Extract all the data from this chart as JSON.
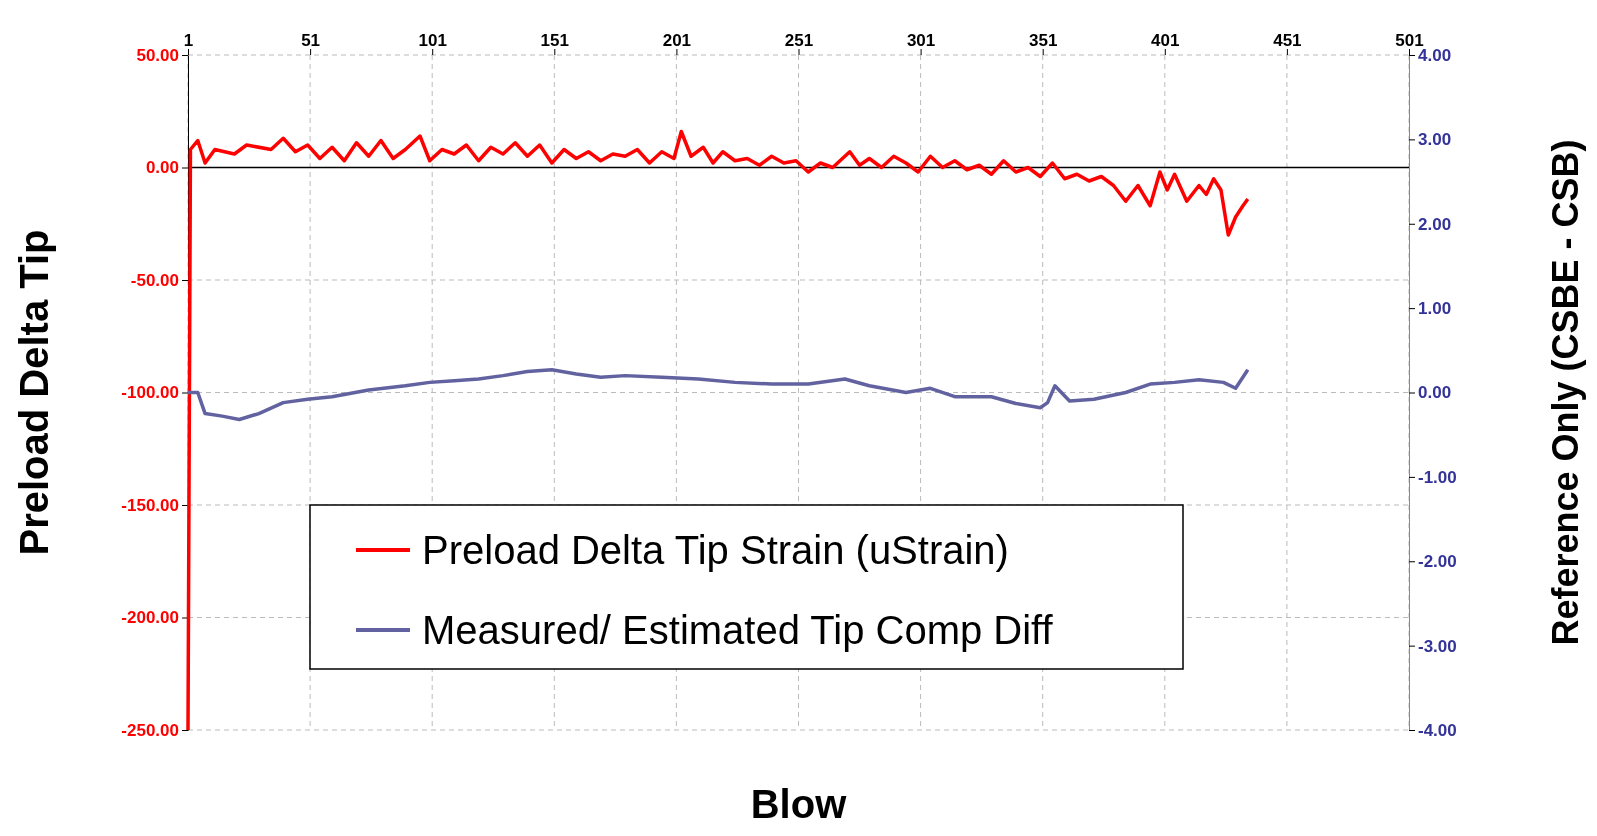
{
  "chart_data": {
    "type": "line",
    "xlabel": "Blow",
    "ylabel": "Preload Delta Tip",
    "y2label": "Reference Only (CSBE - CSB)",
    "xlim": [
      1,
      501
    ],
    "xticks": [
      1,
      51,
      101,
      151,
      201,
      251,
      301,
      351,
      401,
      451,
      501
    ],
    "ylim": [
      -250,
      50
    ],
    "yticks": [
      {
        "value": -250,
        "label": "-250.00"
      },
      {
        "value": -200,
        "label": "-200.00"
      },
      {
        "value": -150,
        "label": "-150.00"
      },
      {
        "value": -100,
        "label": "-100.00"
      },
      {
        "value": -50,
        "label": "-50.00"
      },
      {
        "value": 0,
        "label": "0.00"
      },
      {
        "value": 50,
        "label": "50.00"
      }
    ],
    "y2lim": [
      -4,
      4
    ],
    "y2ticks": [
      {
        "value": -4,
        "label": "-4.00"
      },
      {
        "value": -3,
        "label": "-3.00"
      },
      {
        "value": -2,
        "label": "-2.00"
      },
      {
        "value": -1,
        "label": "-1.00"
      },
      {
        "value": 0,
        "label": "0.00"
      },
      {
        "value": 1,
        "label": "1.00"
      },
      {
        "value": 2,
        "label": "2.00"
      },
      {
        "value": 3,
        "label": "3.00"
      },
      {
        "value": 4,
        "label": "4.00"
      }
    ],
    "grid": true,
    "legend": "bottom",
    "marker": "none",
    "line_style": "solid",
    "ref_lines": [
      {
        "axis": "y",
        "value": 0,
        "color": "#000000"
      }
    ],
    "series": [
      {
        "name": "Preload Delta Tip Strain (uStrain)",
        "color": "#ff0000",
        "x": [
          1,
          2,
          5,
          8,
          12,
          20,
          25,
          35,
          40,
          45,
          50,
          55,
          60,
          65,
          70,
          75,
          80,
          85,
          90,
          96,
          100,
          105,
          110,
          115,
          120,
          125,
          130,
          135,
          140,
          145,
          150,
          155,
          160,
          165,
          170,
          175,
          180,
          185,
          190,
          195,
          200,
          203,
          207,
          212,
          216,
          220,
          225,
          230,
          235,
          240,
          245,
          250,
          255,
          260,
          265,
          272,
          276,
          280,
          285,
          290,
          295,
          300,
          305,
          310,
          315,
          320,
          325,
          330,
          335,
          340,
          345,
          350,
          355,
          360,
          365,
          370,
          375,
          380,
          385,
          390,
          395,
          399,
          402,
          405,
          410,
          415,
          418,
          421,
          424,
          427,
          430,
          433,
          435
        ],
        "values": [
          -250,
          8,
          12,
          2,
          8,
          6,
          10,
          8,
          13,
          7,
          10,
          4,
          9,
          3,
          11,
          5,
          12,
          4,
          8,
          14,
          3,
          8,
          6,
          10,
          3,
          9,
          6,
          11,
          5,
          10,
          2,
          8,
          4,
          7,
          3,
          6,
          5,
          8,
          2,
          7,
          4,
          16,
          5,
          9,
          2,
          7,
          3,
          4,
          1,
          5,
          2,
          3,
          -2,
          2,
          0,
          7,
          1,
          4,
          0,
          5,
          2,
          -2,
          5,
          0,
          3,
          -1,
          1,
          -3,
          3,
          -2,
          0,
          -4,
          2,
          -5,
          -3,
          -6,
          -4,
          -8,
          -15,
          -8,
          -17,
          -2,
          -10,
          -3,
          -15,
          -8,
          -12,
          -5,
          -10,
          -30,
          -22,
          -17,
          -14
        ]
      },
      {
        "name": "Measured/ Estimated Tip Comp Diff",
        "color": "#6262a0",
        "axis": "y2",
        "x": [
          1,
          5,
          8,
          15,
          22,
          30,
          40,
          50,
          60,
          75,
          90,
          100,
          110,
          120,
          130,
          140,
          150,
          160,
          170,
          180,
          195,
          210,
          225,
          240,
          255,
          270,
          280,
          295,
          305,
          315,
          330,
          340,
          350,
          353,
          356,
          362,
          372,
          385,
          395,
          405,
          415,
          425,
          430,
          435
        ],
        "values": [
          0,
          0,
          -0.25,
          -0.28,
          -0.32,
          -0.25,
          -0.12,
          -0.08,
          -0.05,
          0.03,
          0.08,
          0.12,
          0.14,
          0.16,
          0.2,
          0.25,
          0.27,
          0.22,
          0.18,
          0.2,
          0.18,
          0.16,
          0.12,
          0.1,
          0.1,
          0.16,
          0.08,
          0,
          0.05,
          -0.05,
          -0.05,
          -0.13,
          -0.18,
          -0.12,
          0.08,
          -0.1,
          -0.08,
          0,
          0.1,
          0.12,
          0.15,
          0.12,
          0.05,
          0.27
        ]
      }
    ]
  }
}
